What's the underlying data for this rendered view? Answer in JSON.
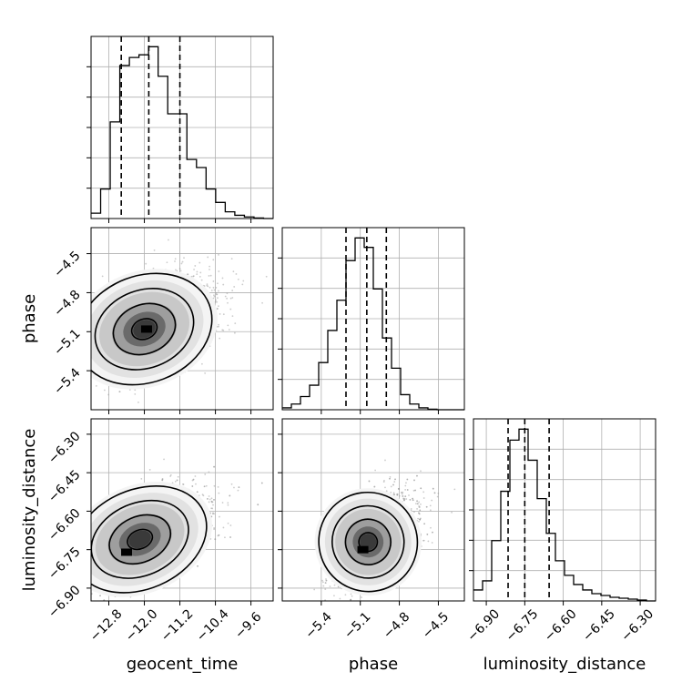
{
  "chart_data": {
    "type": "corner",
    "parameters": [
      "geocent_time",
      "phase",
      "luminosity_distance"
    ],
    "grid": true,
    "histograms": [
      {
        "param": "geocent_time",
        "range": [
          -13.2,
          -9.1
        ],
        "quantiles": [
          -12.52,
          -11.9,
          -11.2
        ],
        "counts": [
          2,
          11,
          36,
          57,
          60,
          61,
          64,
          53,
          39,
          39,
          22,
          19,
          11,
          6,
          2.5,
          1.2,
          0.6,
          0.2,
          0
        ]
      },
      {
        "param": "phase",
        "range": [
          -5.7,
          -4.3
        ],
        "quantiles": [
          -5.21,
          -5.05,
          -4.9
        ],
        "counts": [
          1,
          3,
          7,
          13,
          25,
          42,
          58,
          79,
          91,
          86,
          64,
          38,
          22,
          8,
          3,
          1,
          0.3,
          0,
          0,
          0
        ]
      },
      {
        "param": "luminosity_distance",
        "range": [
          -6.95,
          -6.24
        ],
        "quantiles": [
          -6.815,
          -6.75,
          -6.655
        ],
        "counts": [
          6,
          11,
          33,
          60,
          88,
          94,
          77,
          56,
          37,
          22,
          14,
          9,
          6,
          4,
          3,
          2,
          1.5,
          1,
          0.5,
          0
        ]
      }
    ],
    "ticks": {
      "geocent_time": {
        "values": [
          -12.8,
          -12.0,
          -11.2,
          -10.4,
          -9.6
        ],
        "labels": [
          "−12.8",
          "−12.0",
          "−11.2",
          "−10.4",
          "−9.6"
        ]
      },
      "phase": {
        "values": [
          -5.4,
          -5.1,
          -4.8,
          -4.5
        ],
        "labels": [
          "−5.4",
          "−5.1",
          "−4.8",
          "−4.5"
        ]
      },
      "luminosity_distance": {
        "values": [
          -6.9,
          -6.75,
          -6.6,
          -6.45,
          -6.3
        ],
        "labels": [
          "−6.90",
          "−6.75",
          "−6.60",
          "−6.45",
          "−6.30"
        ]
      }
    },
    "density_pairs": [
      {
        "x": "geocent_time",
        "y": "phase",
        "center": [
          -12.0,
          -5.08
        ],
        "spread": [
          0.62,
          0.18
        ],
        "correlation": 0.45,
        "mode": [
          -11.95,
          -5.08
        ]
      },
      {
        "x": "geocent_time",
        "y": "luminosity_distance",
        "center": [
          -12.1,
          -6.71
        ],
        "spread": [
          0.62,
          0.085
        ],
        "correlation": 0.55,
        "mode": [
          -12.4,
          -6.76
        ]
      },
      {
        "x": "phase",
        "y": "luminosity_distance",
        "center": [
          -5.04,
          -6.72
        ],
        "spread": [
          0.15,
          0.085
        ],
        "correlation": 0.5,
        "mode": [
          -5.08,
          -6.75
        ]
      }
    ],
    "axis_labels": {
      "x": [
        "geocent_time",
        "phase",
        "luminosity_distance"
      ],
      "y": [
        "phase",
        "luminosity_distance"
      ]
    }
  }
}
